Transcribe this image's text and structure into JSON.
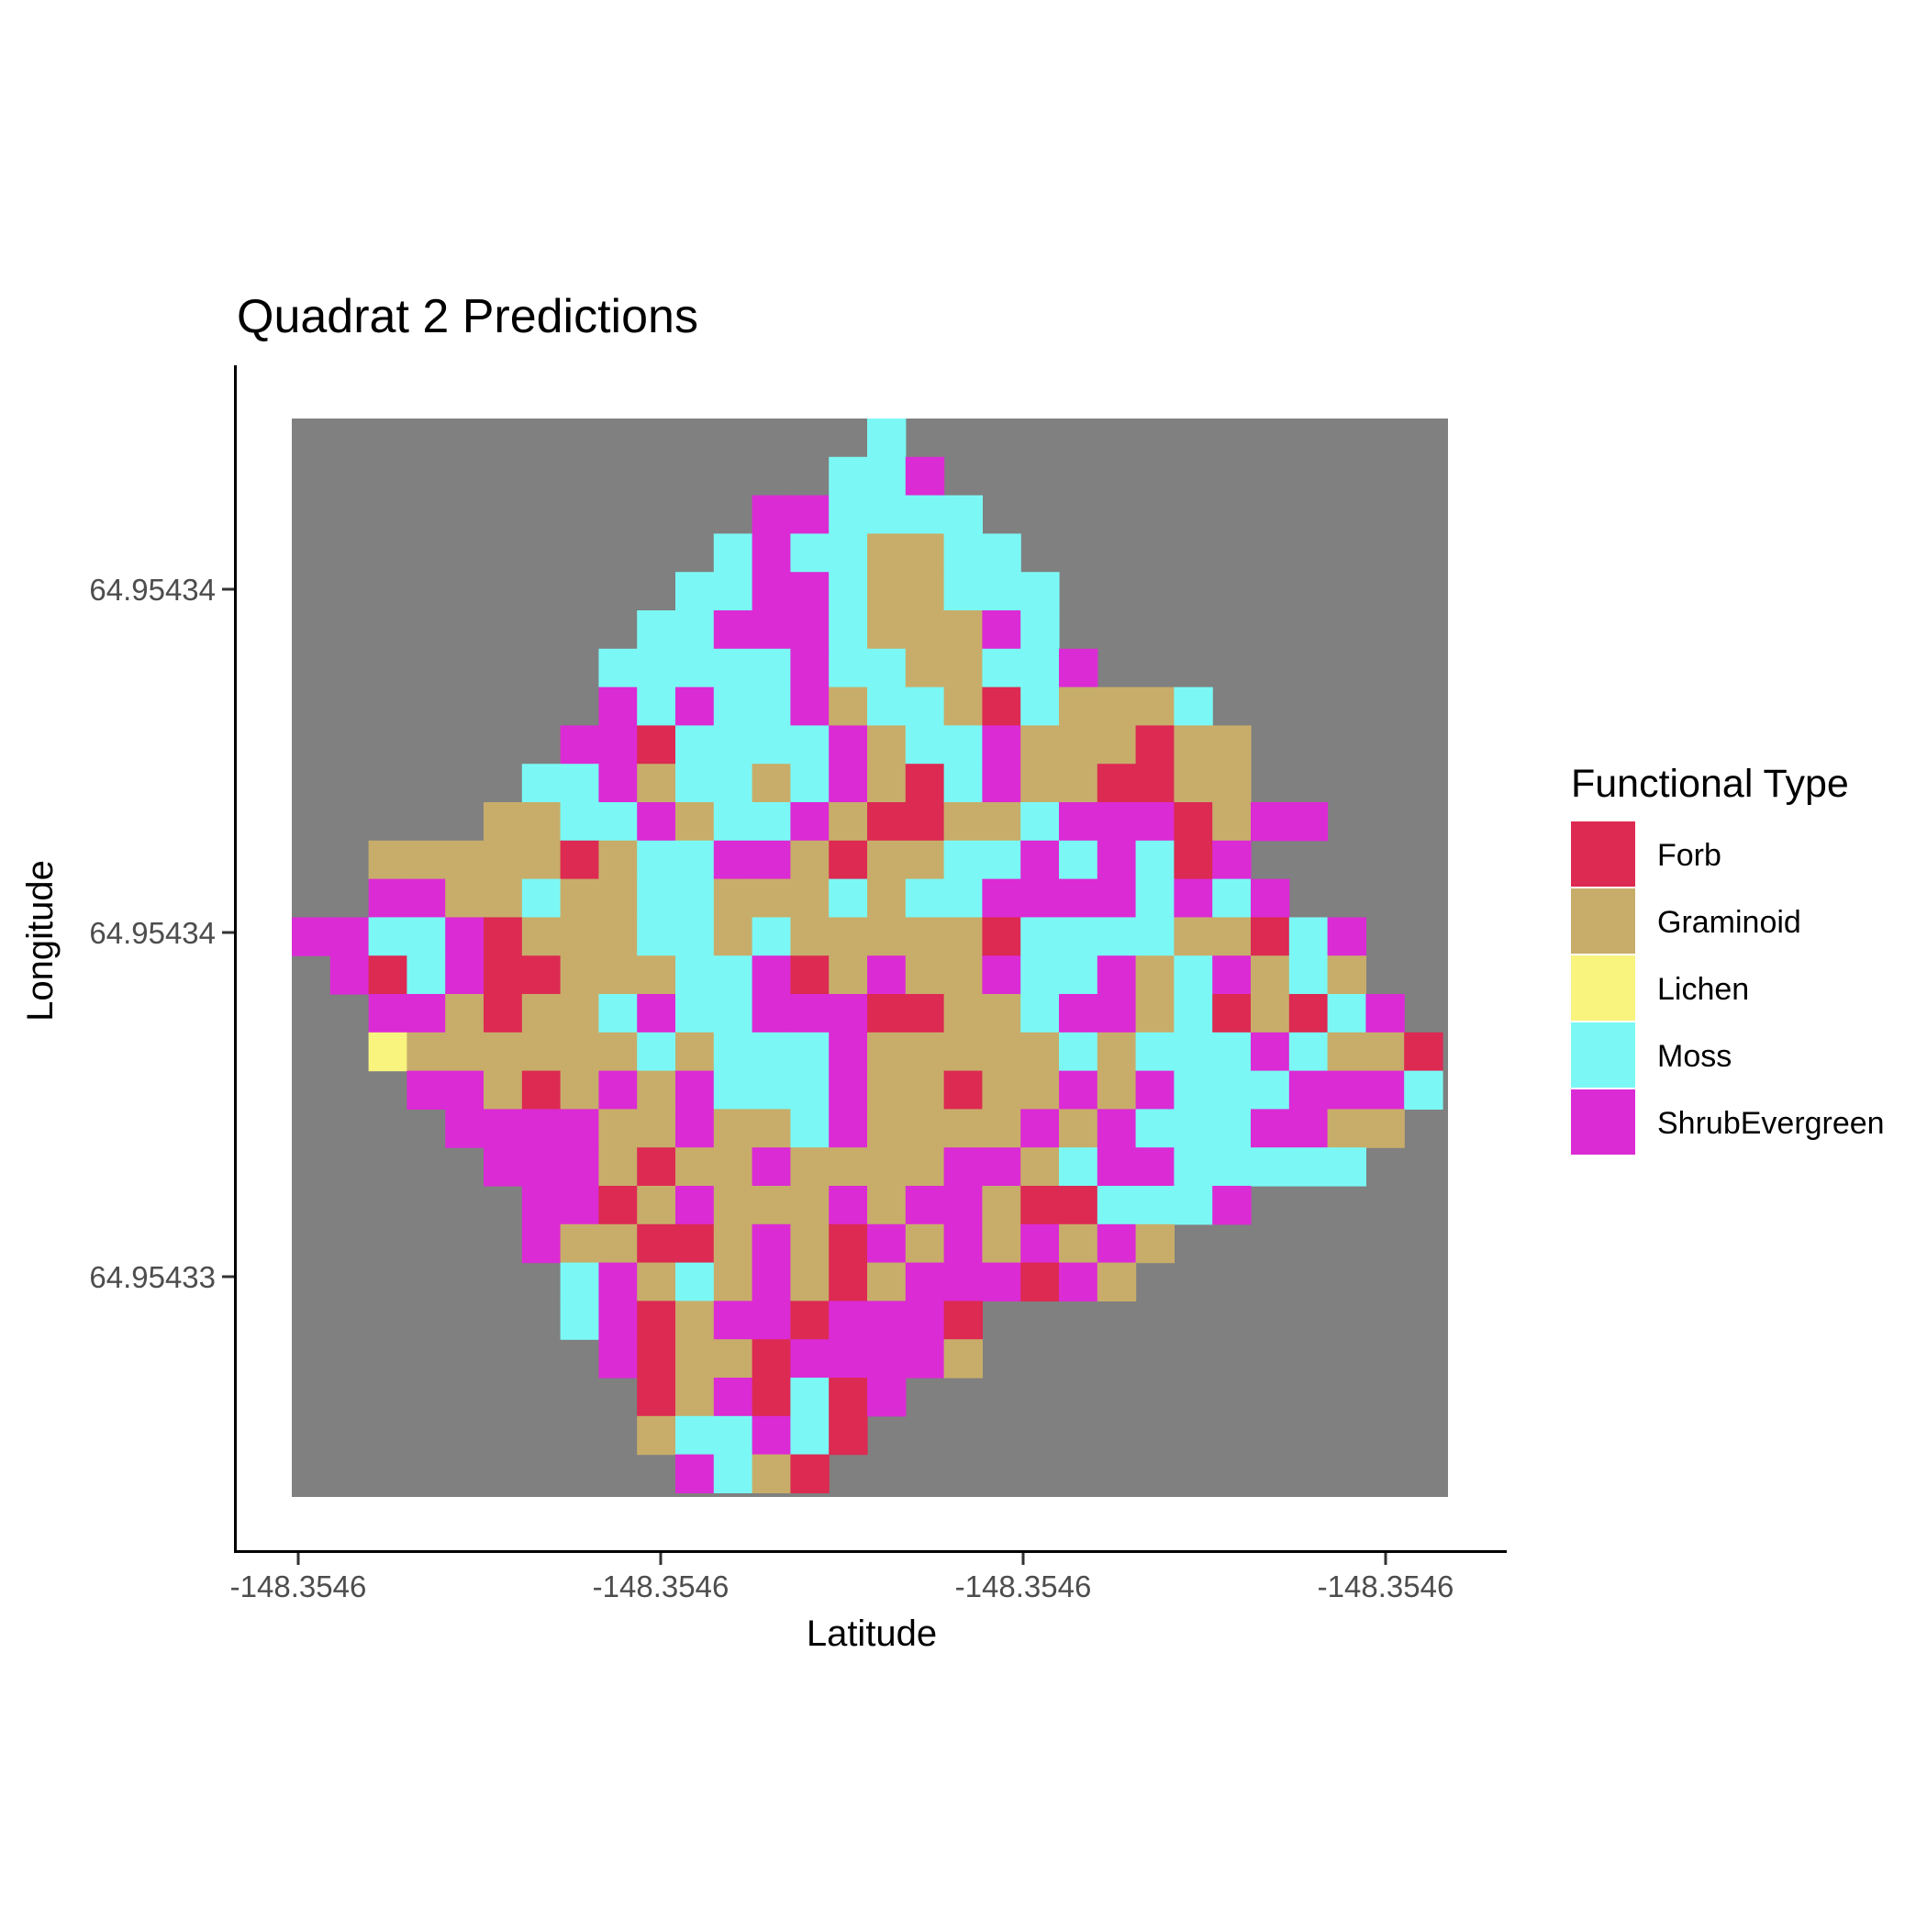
{
  "chart_data": {
    "type": "heatmap",
    "title": "Quadrat 2 Predictions",
    "xlabel": "Latitude",
    "ylabel": "Longitude",
    "x_ticks": [
      "-148.3546",
      "-148.3546",
      "-148.3546",
      "-148.3546"
    ],
    "y_ticks": [
      "64.95434",
      "64.95434",
      "64.95433"
    ],
    "legend": {
      "title": "Functional Type",
      "position": "right",
      "entries": [
        {
          "label": "Forb",
          "color": "#DC2A52"
        },
        {
          "label": "Graminoid",
          "color": "#C8AD6A"
        },
        {
          "label": "Lichen",
          "color": "#F8F47E"
        },
        {
          "label": "Moss",
          "color": "#7BF8F5"
        },
        {
          "label": "ShrubEvergreen",
          "color": "#DB2BD4"
        }
      ]
    },
    "background_color": "#808080",
    "grid": false,
    "cell_codes": {
      "F": "Forb",
      "G": "Graminoid",
      "L": "Lichen",
      "M": "Moss",
      "S": "ShrubEvergreen",
      ".": "none"
    },
    "grid_rows": [
      "...............M..............",
      "..............MMS.............",
      "............SSMMMM............",
      "...........MSMMGGMM...........",
      "..........MMSSMGGMMM..........",
      ".........MMSSSMGGGSM..........",
      "........MMMMMSMMGGMMS.........",
      "........SMSMMSGMMGFMGGGM......",
      ".......SSFMMMMSGMMSGGGFGG.....",
      "......MMSGMMGMSGFMSGGFFGG.....",
      ".....GGMMSGMMSGFFGGMSSSFGSS...",
      "..GGGGGFGMMSSGFGGMMSMSMFS.....",
      "..SSGGMGGMMGGGMGMMSSSSMSMS....",
      "SSMMSFGGGMMGMGGGGGFMMMMGGFMS..",
      ".SFMSFFGGGMMSFGSGGSMMSGMSGMG..",
      "..SSGFGGMSMMSSSFFGGMSSGMFGFMS.",
      "..LGGGGGGMGMMMSGGGGGMGMMMSMGGFS",
      "...SSGFGSGSMMMSGGFGGSGSMMMSSSM",
      "....SSSSGGSGGMSGGGGSGSMMMSSGG..",
      ".....SSSGFGGSGGGGSSGMSSMMMMM...",
      "......SSFGSGGGSGSSGFFMMMS.....",
      "......SGGFFGSGFSGSGSGSG.......",
      ".......MSGMGSGFGSSSFSG........",
      ".......MSFGSSFSSSF............",
      "........SFGGFSSSSG............",
      ".........FGSFMFS..............",
      ".........GMMSMF...............",
      "..........SMGF................"
    ]
  }
}
